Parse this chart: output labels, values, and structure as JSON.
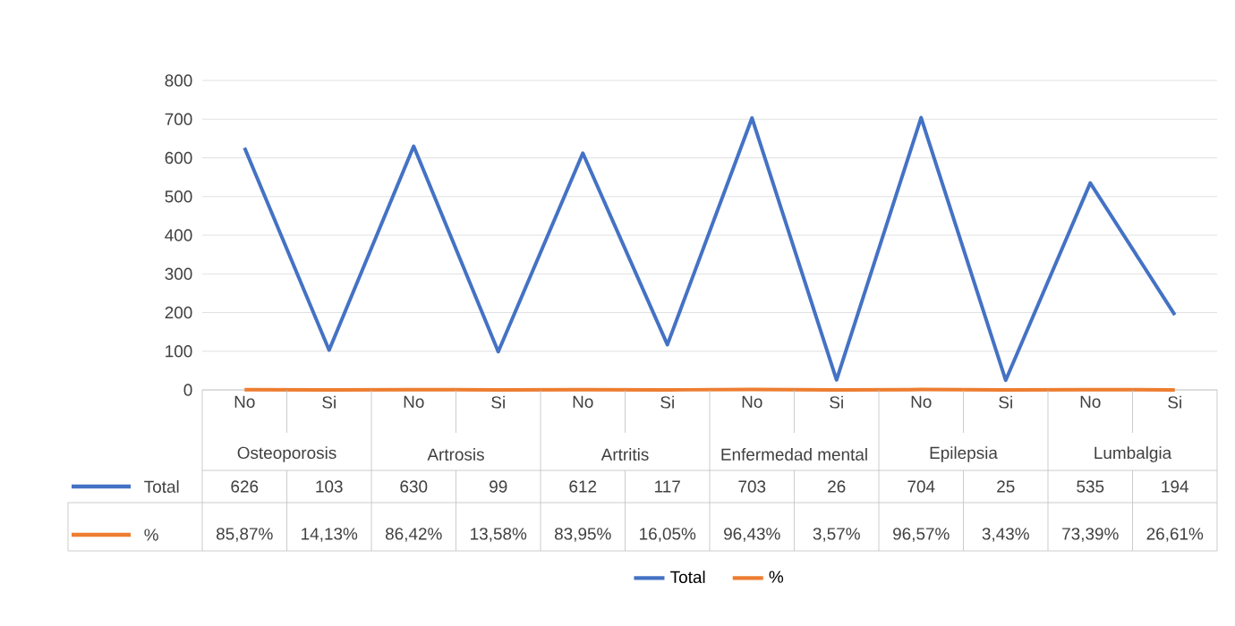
{
  "chart_data": {
    "type": "line",
    "categories": [
      "No",
      "Si",
      "No",
      "Si",
      "No",
      "Si",
      "No",
      "Si",
      "No",
      "Si",
      "No",
      "Si"
    ],
    "annotations": [
      "Osteoporosis",
      "Artrosis",
      "Artritis",
      "Enfermedad mental",
      "Epilepsia",
      "Lumbalgia"
    ],
    "series": [
      {
        "name": "Total",
        "color": "#4472c4",
        "values": [
          626,
          103,
          630,
          99,
          612,
          117,
          703,
          26,
          704,
          25,
          535,
          194
        ],
        "value_labels": [
          "626",
          "103",
          "630",
          "99",
          "612",
          "117",
          "703",
          "26",
          "704",
          "25",
          "535",
          "194"
        ]
      },
      {
        "name": "%",
        "color": "#ed7d31",
        "values": [
          0.8587,
          0.1413,
          0.8642,
          0.1358,
          0.8395,
          0.1605,
          0.9643,
          0.0357,
          0.9657,
          0.0343,
          0.7339,
          0.2661
        ],
        "value_labels": [
          "85,87%",
          "14,13%",
          "86,42%",
          "13,58%",
          "83,95%",
          "16,05%",
          "96,43%",
          "3,57%",
          "96,57%",
          "3,43%",
          "73,39%",
          "26,61%"
        ]
      }
    ],
    "ylim": [
      0,
      800
    ],
    "yticks": [
      0,
      100,
      200,
      300,
      400,
      500,
      600,
      700,
      800
    ],
    "grid": "y",
    "legend": "bottom"
  }
}
